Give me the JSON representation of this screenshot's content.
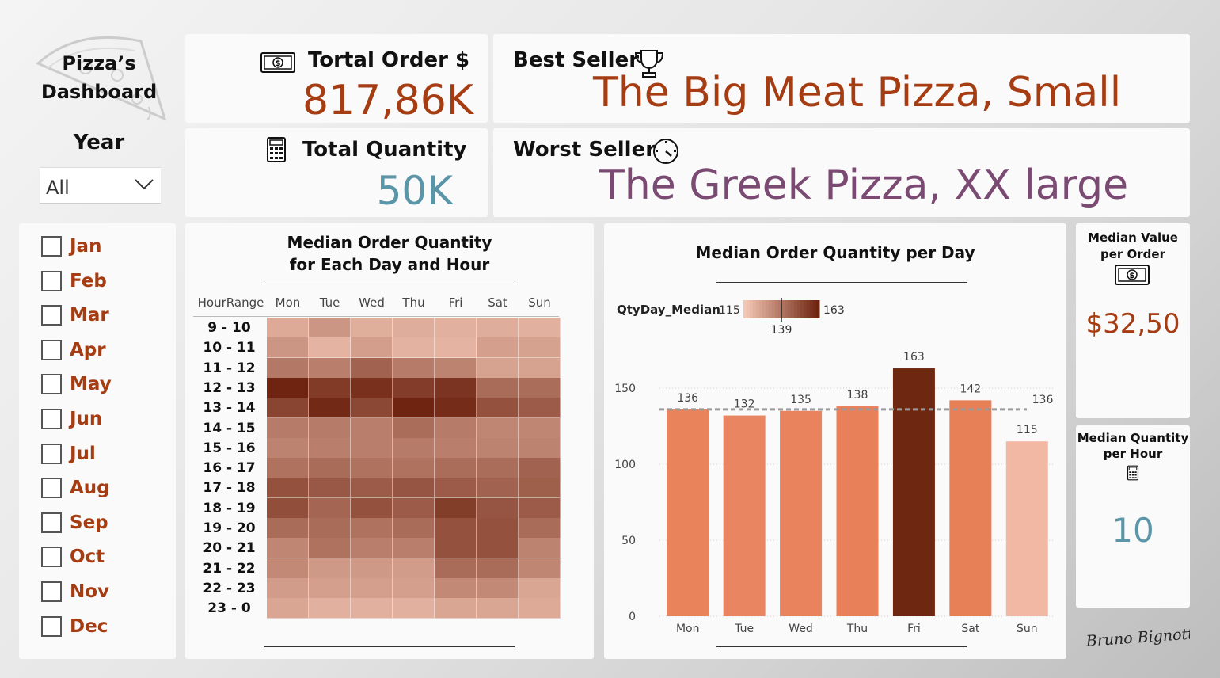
{
  "logo": {
    "line1": "Pizza’s",
    "line2": "Dashboard",
    "icon": "pizza-slice-icon"
  },
  "year_filter": {
    "title": "Year",
    "selected": "All"
  },
  "months": [
    "Jan",
    "Feb",
    "Mar",
    "Apr",
    "May",
    "Jun",
    "Jul",
    "Aug",
    "Sep",
    "Oct",
    "Nov",
    "Dec"
  ],
  "kpi": {
    "total_order": {
      "title": "Tortal Order $",
      "value": "817,86K",
      "icon": "money-bill-icon"
    },
    "total_quantity": {
      "title": "Total Quantity",
      "value": "50K",
      "icon": "calculator-icon"
    },
    "best_seller": {
      "title": "Best Seller",
      "value": "The Big Meat Pizza, Small",
      "icon": "trophy-icon"
    },
    "worst_seller": {
      "title": "Worst Seller",
      "value": "The Greek Pizza, XX large",
      "icon": "speedometer-icon"
    }
  },
  "colors": {
    "accent_red": "#a63c12",
    "accent_purple": "#7b4a72",
    "accent_teal": "#5b95a8",
    "bar_dark": "#6e2811",
    "bar_light": "#f2b8a3"
  },
  "heatmap": {
    "title_line1": "Median Order Quantity",
    "title_line2": "for Each Day and Hour",
    "row_header": "HourRange",
    "days": [
      "Mon",
      "Tue",
      "Wed",
      "Thu",
      "Fri",
      "Sat",
      "Sun"
    ],
    "hours": [
      "9 - 10",
      "10 - 11",
      "11 - 12",
      "12 - 13",
      "13 - 14",
      "14 - 15",
      "15 - 16",
      "16 - 17",
      "17 - 18",
      "18 - 19",
      "19 - 20",
      "20 - 21",
      "21 - 22",
      "22 - 23",
      "23 - 0"
    ],
    "values": [
      [
        0.18,
        0.3,
        0.15,
        0.16,
        0.14,
        0.16,
        0.14
      ],
      [
        0.3,
        0.12,
        0.25,
        0.13,
        0.12,
        0.24,
        0.23
      ],
      [
        0.48,
        0.44,
        0.62,
        0.46,
        0.42,
        0.22,
        0.22
      ],
      [
        1.0,
        0.86,
        0.92,
        0.85,
        0.9,
        0.56,
        0.55
      ],
      [
        0.8,
        0.97,
        0.78,
        1.0,
        0.95,
        0.72,
        0.66
      ],
      [
        0.46,
        0.46,
        0.44,
        0.55,
        0.46,
        0.4,
        0.4
      ],
      [
        0.42,
        0.44,
        0.44,
        0.46,
        0.44,
        0.42,
        0.42
      ],
      [
        0.52,
        0.56,
        0.52,
        0.52,
        0.55,
        0.55,
        0.62
      ],
      [
        0.72,
        0.68,
        0.66,
        0.7,
        0.66,
        0.62,
        0.64
      ],
      [
        0.74,
        0.6,
        0.72,
        0.66,
        0.84,
        0.7,
        0.66
      ],
      [
        0.56,
        0.56,
        0.52,
        0.56,
        0.72,
        0.72,
        0.56
      ],
      [
        0.4,
        0.52,
        0.44,
        0.44,
        0.72,
        0.72,
        0.42
      ],
      [
        0.38,
        0.28,
        0.28,
        0.26,
        0.56,
        0.56,
        0.4
      ],
      [
        0.26,
        0.24,
        0.24,
        0.24,
        0.38,
        0.38,
        0.2
      ],
      [
        0.2,
        0.14,
        0.14,
        0.14,
        0.2,
        0.2,
        0.18
      ]
    ]
  },
  "chart_data": {
    "type": "bar",
    "title": "Median Order Quantity per Day",
    "categories": [
      "Mon",
      "Tue",
      "Wed",
      "Thu",
      "Fri",
      "Sat",
      "Sun"
    ],
    "values": [
      136,
      132,
      135,
      138,
      163,
      142,
      115
    ],
    "yticks": [
      0,
      50,
      100,
      150
    ],
    "ylim": [
      0,
      175
    ],
    "average_line": 136,
    "legend": {
      "label": "QtyDay_Median",
      "min": "115",
      "max": "163",
      "marker": "139"
    }
  },
  "side": {
    "median_value": {
      "title_line1": "Median Value",
      "title_line2": "per  Order",
      "value": "$32,50",
      "icon": "money-bill-icon"
    },
    "median_quantity": {
      "title_line1": "Median Quantity",
      "title_line2": "per  Hour",
      "value": "10",
      "icon": "calculator-icon"
    }
  },
  "signature": "Bruno Bignotto"
}
